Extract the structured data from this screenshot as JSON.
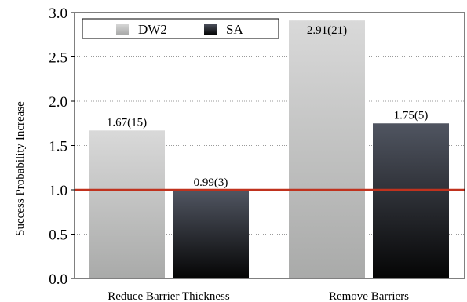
{
  "chart_data": {
    "type": "bar",
    "title": "",
    "xlabel": "",
    "ylabel": "Success Probability Increase",
    "categories": [
      "Reduce Barrier Thickness",
      "Remove Barriers"
    ],
    "series": [
      {
        "name": "DW2",
        "values": [
          1.67,
          2.91
        ],
        "labels": [
          "1.67(15)",
          "2.91(21)"
        ],
        "color_top": "#d9d9d9",
        "color_bottom": "#a9aaa9"
      },
      {
        "name": "SA",
        "values": [
          0.99,
          1.75
        ],
        "labels": [
          "0.99(3)",
          "1.75(5)"
        ],
        "color_top": "#505561",
        "color_bottom": "#050505"
      }
    ],
    "ylim": [
      0,
      3.0
    ],
    "yticks": [
      "0.0",
      "0.5",
      "1.0",
      "1.5",
      "2.0",
      "2.5",
      "3.0"
    ],
    "grid": true,
    "legend": "top-left",
    "reference_line": {
      "y": 1.0,
      "color": "#c0321e"
    }
  }
}
